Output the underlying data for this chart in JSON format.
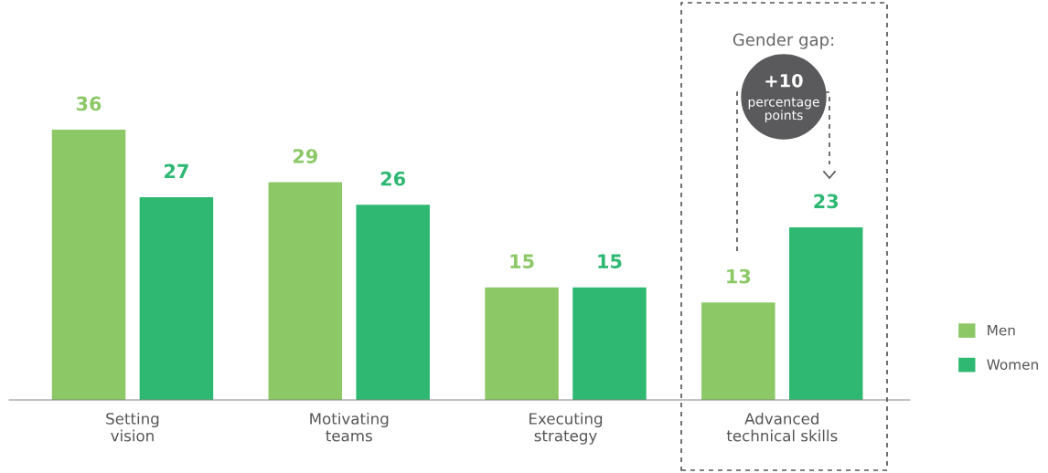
{
  "chart_data": {
    "type": "bar",
    "categories": [
      "Setting vision",
      "Motivating teams",
      "Executing strategy",
      "Advanced technical skills"
    ],
    "series": [
      {
        "name": "Men",
        "color": "#8cc866",
        "values": [
          36,
          29,
          15,
          13
        ]
      },
      {
        "name": "Women",
        "color": "#2eb872",
        "values": [
          27,
          26,
          15,
          23
        ]
      }
    ],
    "data_labels": true,
    "legend": "right",
    "grid": false,
    "annotations": [
      "Gender gap:",
      "+10",
      "percentage points"
    ]
  }
}
